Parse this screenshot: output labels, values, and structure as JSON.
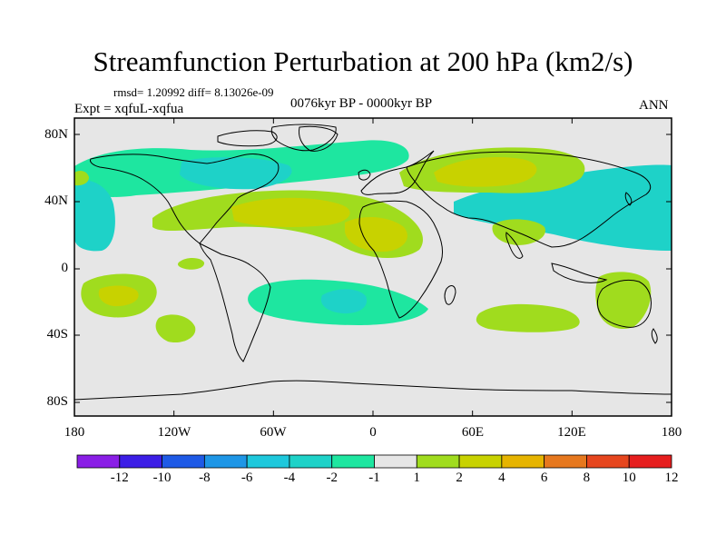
{
  "title": "Streamfunction Perturbation at 200 hPa (km2/s)",
  "stats": "rmsd= 1.20992 diff= 8.13026e-09",
  "expt": "Expt = xqfuL-xqfua",
  "period": "0076kyr BP - 0000kyr BP",
  "season": "ANN",
  "axes": {
    "lat_labels": [
      "80N",
      "40N",
      "0",
      "40S",
      "80S"
    ],
    "lon_labels": [
      "180",
      "120W",
      "60W",
      "0",
      "60E",
      "120E",
      "180"
    ]
  },
  "colorbar": {
    "labels": [
      "-12",
      "-10",
      "-8",
      "-6",
      "-4",
      "-2",
      "-1",
      "1",
      "2",
      "4",
      "6",
      "8",
      "10",
      "12"
    ],
    "colors": [
      "#8a1ee6",
      "#3c1ee6",
      "#1e5ae6",
      "#1e96e6",
      "#1ec8dc",
      "#1ed2c8",
      "#1ee6a0",
      "#e6e6e6",
      "#a0dc1e",
      "#c8d200",
      "#e6b400",
      "#e6781e",
      "#e6461e",
      "#e61e1e"
    ]
  },
  "map": {
    "background_color": "#e6e6e6",
    "regions": [
      {
        "name": "n-atlantic-band",
        "level": "-1",
        "color": "#1ee6a0"
      },
      {
        "name": "north-america-negative",
        "level": "-2",
        "color": "#1ed2c8"
      },
      {
        "name": "n-pacific-west-negative",
        "level": "-2",
        "color": "#1ed2c8"
      },
      {
        "name": "n-pacific-east-negative",
        "level": "-2",
        "color": "#1ed2c8"
      },
      {
        "name": "subtropical-atlantic-positive",
        "level": "2",
        "color": "#a0dc1e"
      },
      {
        "name": "subtropical-atlantic-core",
        "level": "4",
        "color": "#c8d200"
      },
      {
        "name": "africa-positive",
        "level": "4",
        "color": "#c8d200"
      },
      {
        "name": "eurasia-positive",
        "level": "2",
        "color": "#a0dc1e"
      },
      {
        "name": "eurasia-core",
        "level": "4",
        "color": "#c8d200"
      },
      {
        "name": "india-positive",
        "level": "2",
        "color": "#a0dc1e"
      },
      {
        "name": "s-pacific-positive",
        "level": "2",
        "color": "#a0dc1e"
      },
      {
        "name": "s-pacific-core",
        "level": "4",
        "color": "#c8d200"
      },
      {
        "name": "south-atlantic-negative",
        "level": "-1",
        "color": "#1ee6a0"
      },
      {
        "name": "south-atlantic-core",
        "level": "-2",
        "color": "#1ed2c8"
      },
      {
        "name": "indian-ocean-positive",
        "level": "2",
        "color": "#a0dc1e"
      },
      {
        "name": "australia-positive",
        "level": "2",
        "color": "#a0dc1e"
      }
    ]
  }
}
